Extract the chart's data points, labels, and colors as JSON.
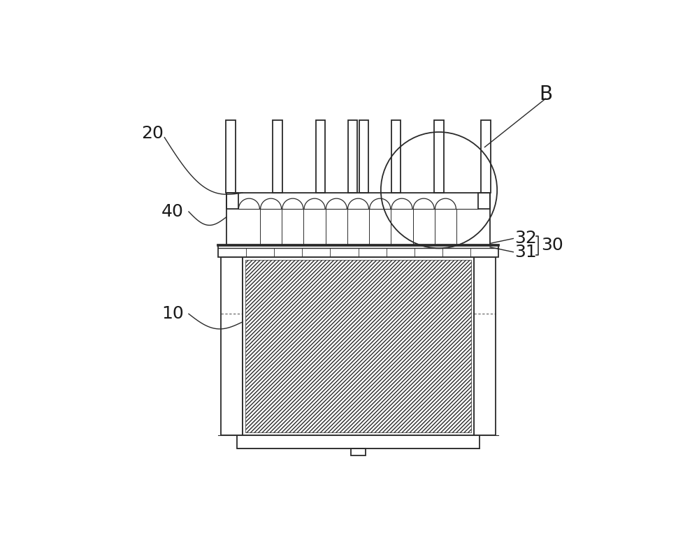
{
  "bg_color": "#ffffff",
  "line_color": "#2a2a2a",
  "fig_width": 10.0,
  "fig_height": 7.73,
  "label_fontsize": 18,
  "label_color": "#1a1a1a"
}
